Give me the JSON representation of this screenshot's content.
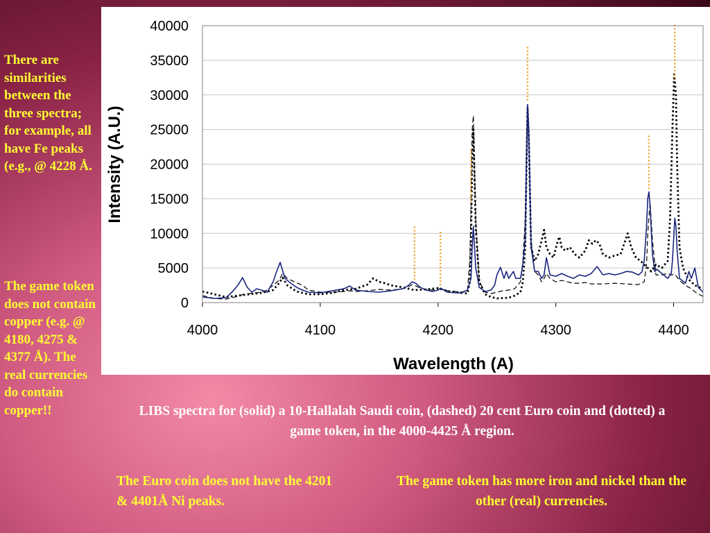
{
  "notes": {
    "fe_similarity": "There are similarities between the three spectra; for example, all have Fe peaks (e.g., @ 4228 Å.",
    "token_copper": "The game token does not contain copper (e.g. @ 4180, 4275 & 4377 Å). The real currencies do contain copper!!",
    "euro_ni": "The Euro coin does not have the 4201 & 4401Å Ni peaks.",
    "token_iron": "The game token has more iron and nickel than the other (real) currencies."
  },
  "caption": "LIBS spectra for (solid) a 10-Hallalah Saudi coin, (dashed) 20 cent Euro coin and (dotted) a game token, in the 4000-4425 Å region.",
  "colors": {
    "solid": "#1a237e",
    "dashed": "#000000",
    "dotted": "#000000",
    "marker": "#f0a020"
  },
  "chart_data": {
    "type": "line",
    "xlabel": "Wavelength (A)",
    "ylabel": "Intensity (A.U.)",
    "xlim": [
      4000,
      4425
    ],
    "ylim": [
      0,
      40000
    ],
    "xticks": [
      4000,
      4100,
      4200,
      4300,
      4400
    ],
    "yticks": [
      0,
      5000,
      10000,
      15000,
      20000,
      25000,
      30000,
      35000,
      40000
    ],
    "grid": "horizontal",
    "legend": "none",
    "series": [
      {
        "style": "solid",
        "x": [
          4000,
          4010,
          4020,
          4025,
          4030,
          4034,
          4038,
          4042,
          4046,
          4050,
          4055,
          4060,
          4063,
          4066,
          4070,
          4075,
          4080,
          4085,
          4090,
          4100,
          4110,
          4120,
          4125,
          4130,
          4140,
          4150,
          4160,
          4170,
          4175,
          4178,
          4181,
          4185,
          4190,
          4195,
          4200,
          4202,
          4204,
          4208,
          4215,
          4220,
          4225,
          4228,
          4229,
          4230,
          4232,
          4235,
          4240,
          4245,
          4248,
          4250,
          4253,
          4256,
          4258,
          4260,
          4262,
          4264,
          4266,
          4270,
          4272,
          4274,
          4275.5,
          4276,
          4277,
          4279,
          4282,
          4285,
          4288,
          4290,
          4292,
          4295,
          4300,
          4305,
          4310,
          4315,
          4320,
          4325,
          4330,
          4335,
          4340,
          4345,
          4350,
          4355,
          4360,
          4365,
          4370,
          4373,
          4375,
          4377,
          4378,
          4379,
          4380,
          4382,
          4384,
          4386,
          4390,
          4395,
          4398,
          4399,
          4400,
          4401,
          4402,
          4403,
          4405,
          4410,
          4413,
          4415,
          4418,
          4421,
          4425
        ],
        "y": [
          800,
          600,
          700,
          1500,
          2500,
          3600,
          2200,
          1500,
          2000,
          1800,
          1500,
          3000,
          4500,
          5800,
          3500,
          2800,
          2200,
          1800,
          1500,
          1400,
          1700,
          2000,
          2400,
          1800,
          1600,
          1500,
          1700,
          2000,
          2500,
          3000,
          2800,
          2200,
          1800,
          1600,
          1800,
          2100,
          1900,
          1500,
          1400,
          1400,
          1800,
          3500,
          8000,
          11000,
          5000,
          2200,
          1600,
          1800,
          2500,
          4000,
          5100,
          3500,
          4500,
          3500,
          4000,
          4500,
          3500,
          3500,
          5500,
          9000,
          24000,
          28600,
          25000,
          8000,
          4500,
          4500,
          3500,
          4000,
          6500,
          4000,
          3800,
          4200,
          3800,
          3500,
          4000,
          3800,
          4200,
          5200,
          4000,
          4200,
          4000,
          4200,
          4500,
          4400,
          4000,
          4400,
          6000,
          11000,
          15000,
          16000,
          14000,
          7000,
          4500,
          4800,
          4200,
          3500,
          4200,
          6000,
          9000,
          12200,
          11000,
          7500,
          3500,
          2800,
          4500,
          3500,
          5000,
          2200,
          1500
        ]
      },
      {
        "style": "dashed",
        "x": [
          4000,
          4010,
          4020,
          4030,
          4035,
          4040,
          4045,
          4050,
          4055,
          4060,
          4065,
          4068,
          4072,
          4078,
          4085,
          4090,
          4100,
          4110,
          4120,
          4125,
          4130,
          4140,
          4150,
          4160,
          4170,
          4175,
          4178,
          4181,
          4185,
          4190,
          4195,
          4200,
          4202,
          4204,
          4208,
          4215,
          4220,
          4225,
          4227,
          4228,
          4229,
          4230,
          4232,
          4235,
          4240,
          4245,
          4250,
          4255,
          4260,
          4265,
          4270,
          4272,
          4274,
          4275.5,
          4276,
          4277,
          4279,
          4282,
          4285,
          4288,
          4290,
          4292,
          4295,
          4300,
          4305,
          4310,
          4315,
          4320,
          4325,
          4330,
          4340,
          4350,
          4360,
          4370,
          4375,
          4377,
          4378,
          4380,
          4382,
          4385,
          4390,
          4395,
          4398,
          4401,
          4405,
          4410,
          4415,
          4420,
          4425
        ],
        "y": [
          1000,
          600,
          500,
          900,
          1200,
          1300,
          1400,
          1500,
          1800,
          2500,
          3200,
          4200,
          3500,
          3000,
          2500,
          1800,
          1500,
          1500,
          1600,
          1700,
          1600,
          1700,
          1900,
          1800,
          2000,
          2300,
          2600,
          2400,
          2100,
          1900,
          1800,
          1900,
          2000,
          1900,
          1700,
          1600,
          1500,
          1800,
          6000,
          14000,
          25000,
          27000,
          12000,
          3000,
          1500,
          1300,
          1500,
          1700,
          1800,
          2000,
          3000,
          6000,
          12000,
          26000,
          28800,
          25000,
          9000,
          4500,
          4000,
          3000,
          3500,
          4200,
          3500,
          3000,
          3200,
          3000,
          2800,
          2800,
          2900,
          2700,
          2700,
          2800,
          2700,
          2600,
          3000,
          5500,
          10000,
          14500,
          9000,
          4000,
          4000,
          4200,
          4000,
          4100,
          3200,
          2500,
          2000,
          1300,
          900
        ]
      },
      {
        "style": "dotted",
        "x": [
          4000,
          4010,
          4020,
          4030,
          4040,
          4050,
          4060,
          4065,
          4068,
          4072,
          4080,
          4090,
          4100,
          4110,
          4120,
          4130,
          4140,
          4145,
          4150,
          4155,
          4160,
          4170,
          4180,
          4190,
          4200,
          4205,
          4210,
          4215,
          4220,
          4225,
          4227,
          4228,
          4229,
          4230,
          4232,
          4235,
          4240,
          4245,
          4250,
          4260,
          4265,
          4270,
          4272,
          4274,
          4275.5,
          4276,
          4277,
          4279,
          4282,
          4285,
          4288,
          4290,
          4292,
          4295,
          4298,
          4301,
          4303,
          4305,
          4308,
          4312,
          4316,
          4320,
          4325,
          4328,
          4331,
          4334,
          4337,
          4340,
          4345,
          4350,
          4355,
          4358,
          4361,
          4364,
          4368,
          4372,
          4375,
          4378,
          4381,
          4385,
          4390,
          4395,
          4397,
          4399,
          4400.5,
          4402,
          4403,
          4405,
          4408,
          4412,
          4418,
          4425
        ],
        "y": [
          1600,
          1200,
          800,
          1000,
          1200,
          1400,
          1800,
          2800,
          3600,
          2500,
          1600,
          1200,
          1200,
          1400,
          1800,
          2000,
          2600,
          3500,
          3000,
          2800,
          2500,
          2200,
          1800,
          1900,
          2100,
          1800,
          1600,
          1500,
          1400,
          1300,
          3000,
          9000,
          20000,
          25000,
          11000,
          3000,
          1200,
          800,
          600,
          700,
          1000,
          1500,
          3000,
          8000,
          24000,
          28200,
          24000,
          8000,
          6000,
          7000,
          9000,
          10500,
          8000,
          7000,
          6500,
          8500,
          9500,
          8000,
          7500,
          8000,
          7000,
          6500,
          7500,
          9000,
          8500,
          9000,
          8500,
          7000,
          6500,
          6800,
          7000,
          8500,
          10000,
          8000,
          6500,
          6000,
          5500,
          5000,
          4500,
          5500,
          5000,
          6000,
          12000,
          25000,
          33000,
          30000,
          20000,
          8000,
          5000,
          3500,
          2500,
          2000
        ]
      }
    ],
    "markers": [
      4180,
      4202,
      4228,
      4276,
      4379,
      4401
    ]
  }
}
